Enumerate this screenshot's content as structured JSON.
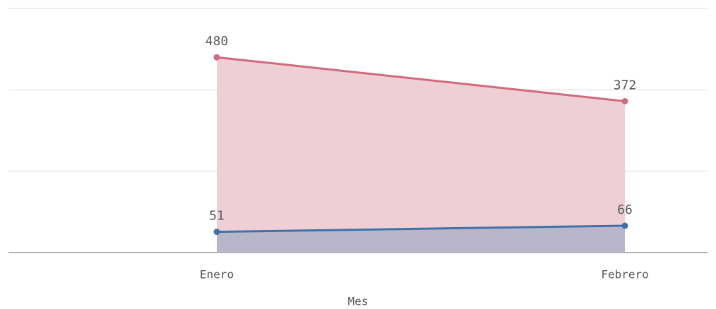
{
  "chart_data": {
    "type": "area",
    "x_label": "Mes",
    "categories": [
      "Enero",
      "Febrero"
    ],
    "series": [
      {
        "color": "#d06a7e",
        "fill": "#efcfd6",
        "values": [
          480,
          372
        ]
      },
      {
        "color": "#3f72a8",
        "fill": "#bab6c9",
        "values": [
          51,
          66
        ]
      }
    ],
    "ylim": [
      0,
      600
    ],
    "yticks": [
      0,
      200,
      400,
      600
    ],
    "grid": true
  }
}
